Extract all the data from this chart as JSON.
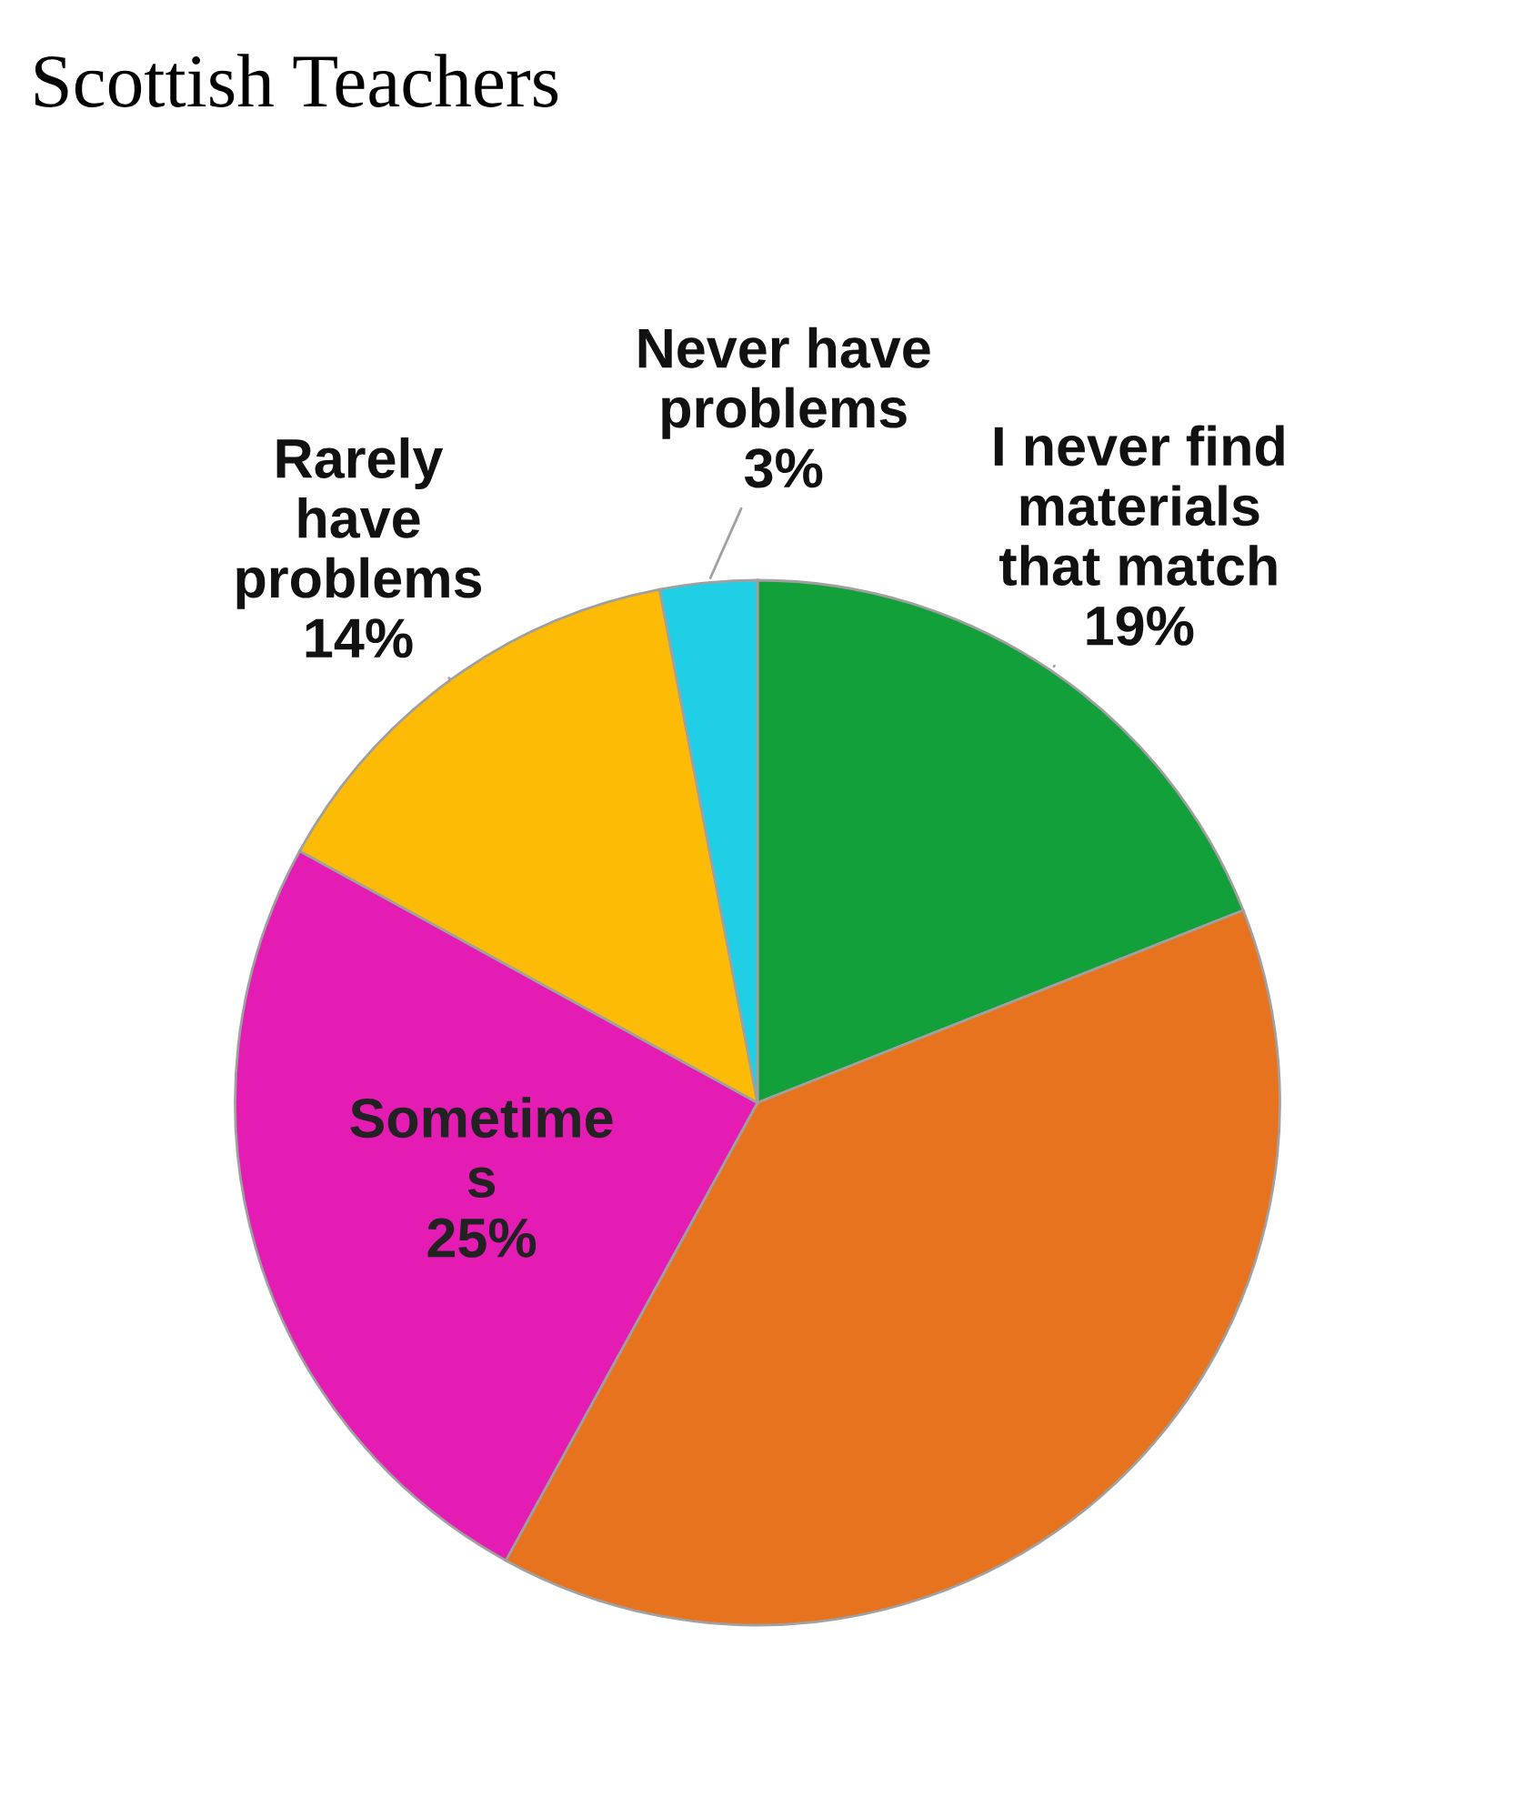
{
  "chart_data": {
    "type": "pie",
    "title": "Scottish Teachers",
    "categories": [
      "I never find\nmaterials\nthat match",
      null,
      "Sometime\ns",
      "Rarely\nhave\nproblems",
      "Never have\nproblems"
    ],
    "values": [
      19,
      39,
      25,
      14,
      3
    ],
    "value_labels": [
      "19%",
      null,
      "25%",
      "14%",
      "3%"
    ],
    "colors": [
      "#12a03a",
      "#e8731e",
      "#e41cb4",
      "#fdbb05",
      "#1fcfe5"
    ]
  }
}
